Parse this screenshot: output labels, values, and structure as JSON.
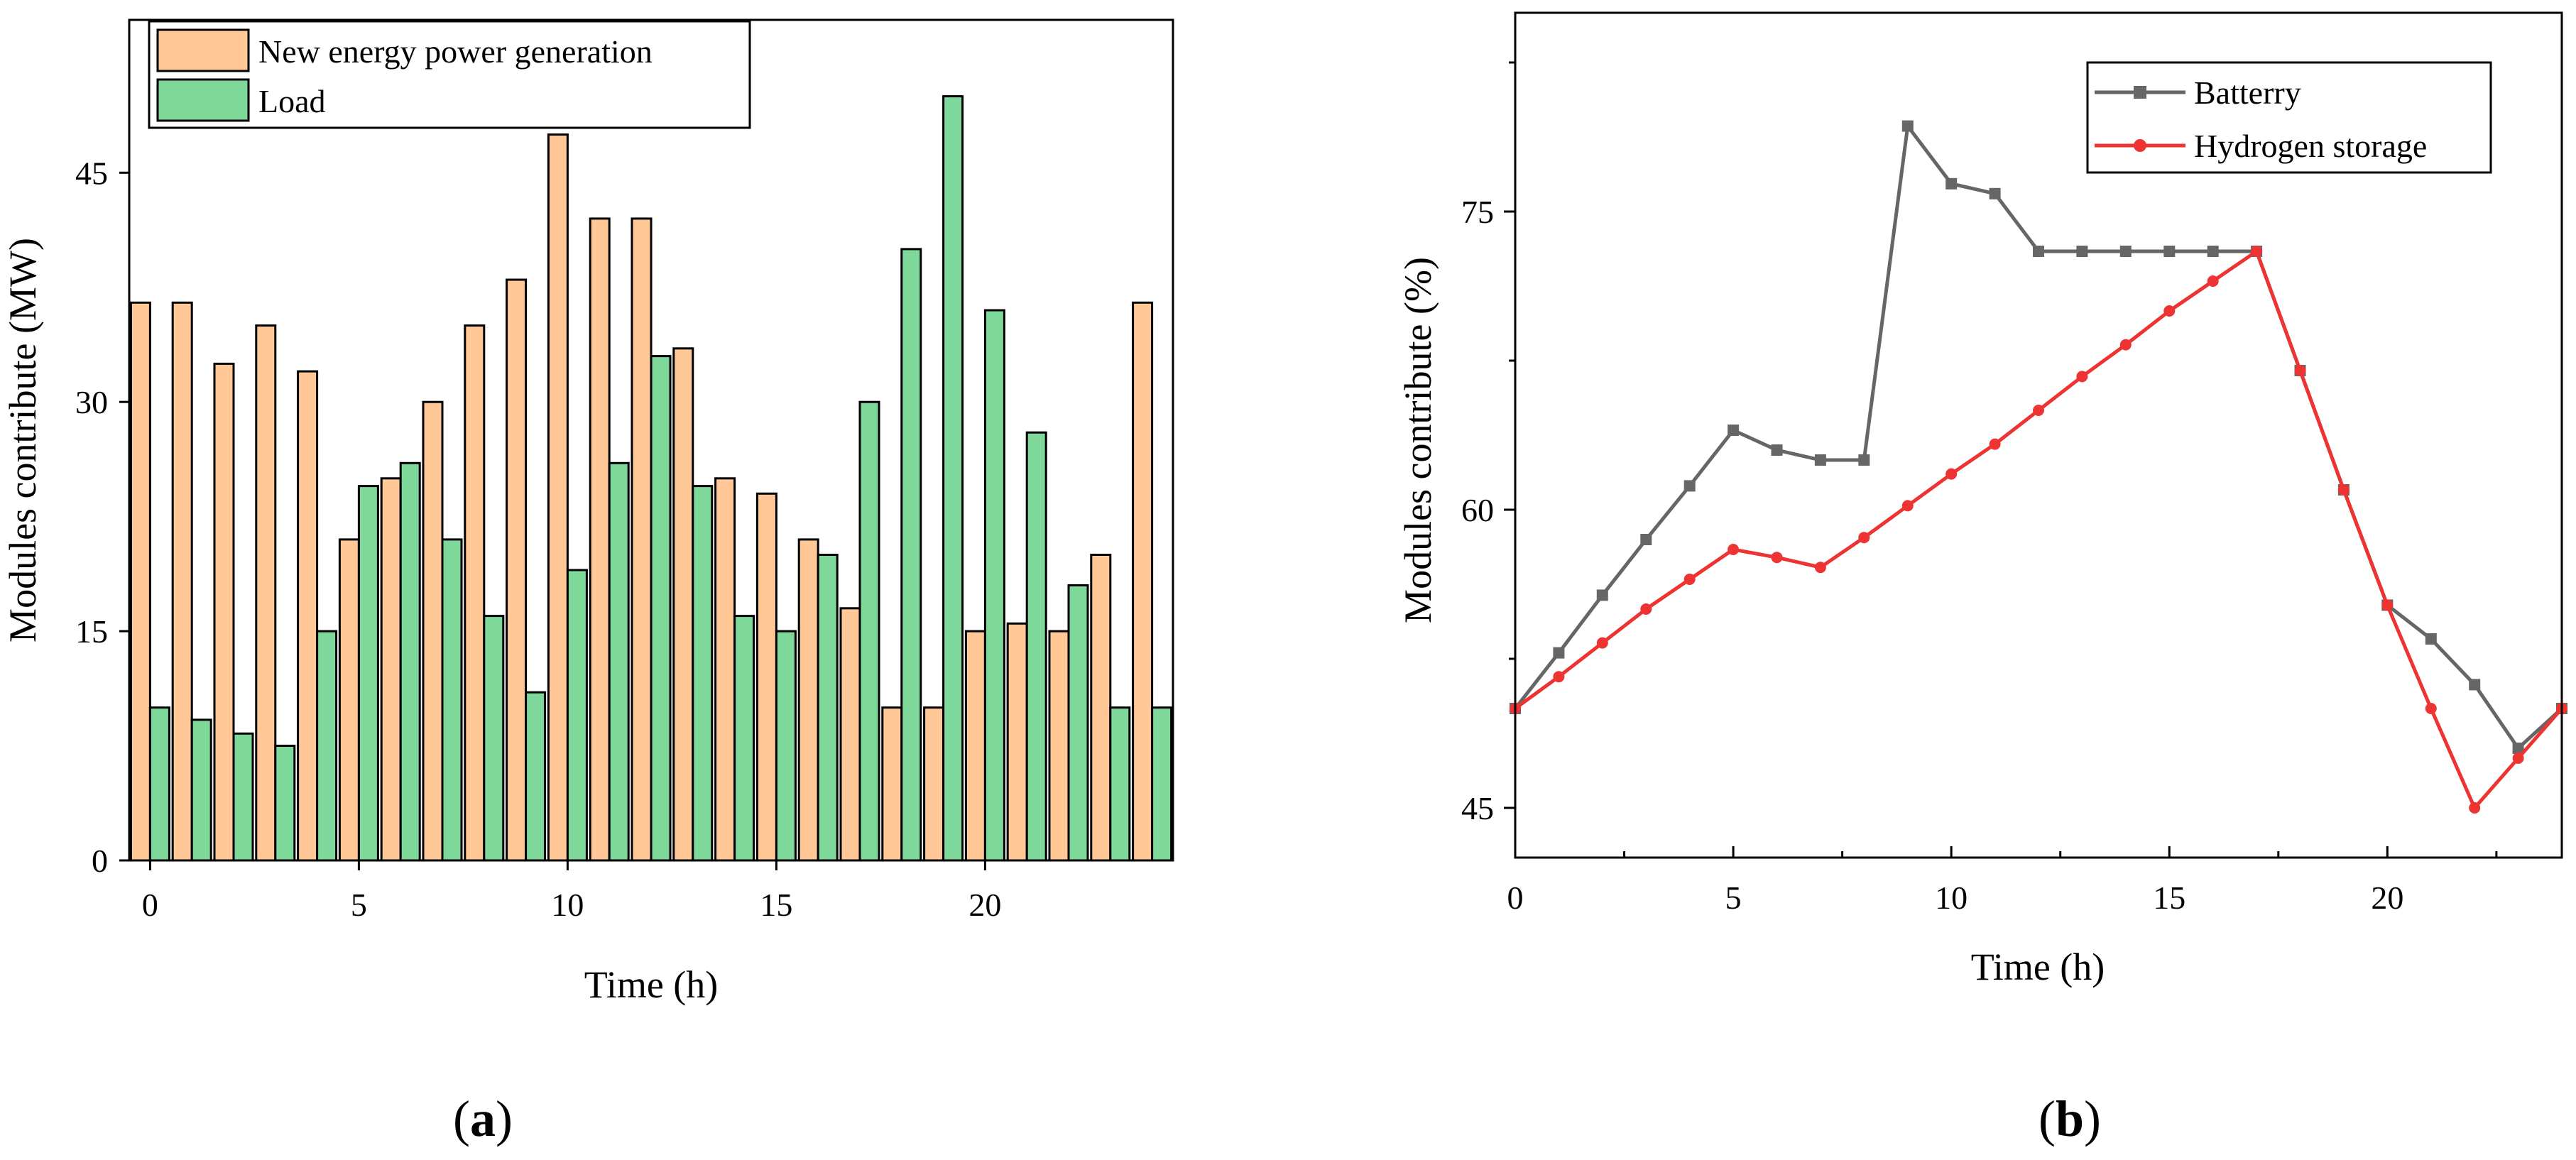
{
  "colors": {
    "generation": "#FFC896",
    "load": "#7DD89A",
    "battery": "#666666",
    "hydrogen": "#EE3333"
  },
  "chart_data": [
    {
      "type": "bar",
      "panel_label": "a",
      "title": "",
      "xlabel": "Time (h)",
      "ylabel": "Modules contribute (MW)",
      "x_ticks": [
        "0",
        "5",
        "10",
        "15",
        "20"
      ],
      "y_ticks": [
        "0",
        "15",
        "30",
        "45"
      ],
      "xlim": [
        -0.5,
        24.5
      ],
      "ylim": [
        0,
        55
      ],
      "legend_position": "top-left",
      "categories": [
        "0",
        "1",
        "2",
        "3",
        "4",
        "5",
        "6",
        "7",
        "8",
        "9",
        "10",
        "11",
        "12",
        "13",
        "14",
        "15",
        "16",
        "17",
        "18",
        "19",
        "20",
        "21",
        "22",
        "23",
        "24"
      ],
      "series": [
        {
          "name": "New energy power generation",
          "color_key": "generation",
          "values": [
            36.5,
            36.5,
            32.5,
            35,
            32,
            21,
            25,
            30,
            35,
            38,
            47.5,
            42,
            42,
            33.5,
            25,
            24,
            21,
            16.5,
            10,
            10,
            15,
            15.5,
            15,
            20,
            36.5
          ]
        },
        {
          "name": "Load",
          "color_key": "load",
          "values": [
            10,
            9.2,
            8.3,
            7.5,
            15,
            24.5,
            26,
            21,
            16,
            11,
            19,
            26,
            33,
            24.5,
            16,
            15,
            20,
            30,
            40,
            50,
            36,
            28,
            18,
            10,
            10
          ]
        }
      ]
    },
    {
      "type": "line",
      "panel_label": "b",
      "title": "",
      "xlabel": "Time (h)",
      "ylabel": "Modules contribute (%)",
      "x_ticks": [
        "0",
        "5",
        "10",
        "15",
        "20"
      ],
      "y_ticks": [
        "45",
        "60",
        "75"
      ],
      "xlim": [
        0,
        24
      ],
      "ylim": [
        42.5,
        85
      ],
      "legend_position": "top-right",
      "x": [
        0,
        1,
        2,
        3,
        4,
        5,
        6,
        7,
        8,
        9,
        10,
        11,
        12,
        13,
        14,
        15,
        16,
        17,
        18,
        19,
        20,
        21,
        22,
        23,
        24
      ],
      "series": [
        {
          "name": "Batterry",
          "color_key": "battery",
          "marker": "square",
          "values": [
            50,
            52.8,
            55.7,
            58.5,
            61.2,
            64,
            63,
            62.5,
            62.5,
            79.3,
            76.4,
            75.9,
            73,
            73,
            73,
            73,
            73,
            73,
            67,
            61,
            55.2,
            53.5,
            51.2,
            48,
            50
          ]
        },
        {
          "name": "Hydrogen storage",
          "color_key": "hydrogen",
          "marker": "circle",
          "values": [
            50,
            51.6,
            53.3,
            55,
            56.5,
            58,
            57.6,
            57.1,
            58.6,
            60.2,
            61.8,
            63.3,
            65,
            66.7,
            68.3,
            70,
            71.5,
            73,
            67,
            61,
            55.2,
            50,
            45,
            47.5,
            50
          ]
        }
      ]
    }
  ]
}
